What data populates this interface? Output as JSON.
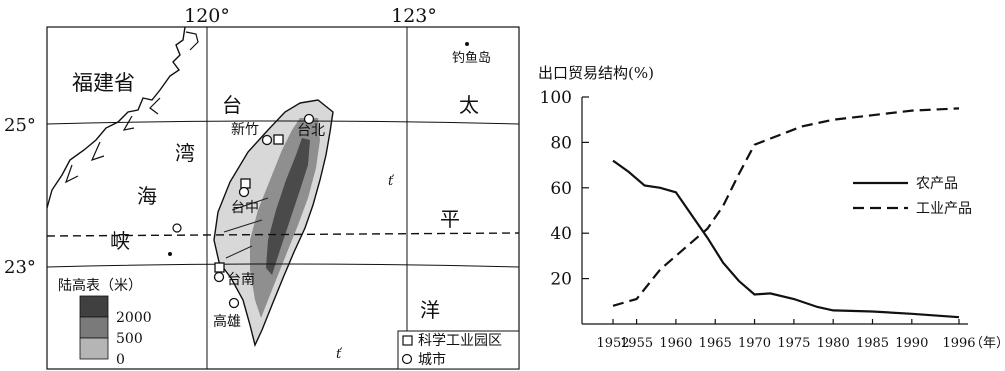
{
  "map": {
    "lon_labels": [
      "120°",
      "123°"
    ],
    "lat_labels": [
      "25°",
      "23°"
    ],
    "place_labels": {
      "fujian": "福建省",
      "tai": "台",
      "wan": "湾",
      "hai": "海",
      "xia": "峡",
      "tai2": "太",
      "ping": "平",
      "yang": "洋",
      "diaoyu": "钓鱼岛",
      "xinzhu": "新竹",
      "taibei": "台北",
      "taizhong": "台中",
      "tainan": "台南",
      "gaoxiong": "高雄"
    },
    "elevation_legend": {
      "title": "陆高表（米）",
      "levels": [
        "2000",
        "500",
        "0"
      ],
      "colors": [
        "#404040",
        "#7a7a7a",
        "#b5b5b5"
      ]
    },
    "symbol_legend": {
      "science_park": "科学工业园区",
      "city": "城市"
    }
  },
  "chart_data": {
    "type": "line",
    "title": "出口贸易结构(%)",
    "xlabel": "（年）",
    "ylabel": "出口贸易结构(%)",
    "categories": [
      "1952",
      "1955",
      "1960",
      "1965",
      "1970",
      "1975",
      "1980",
      "1985",
      "1990",
      "1996"
    ],
    "ylim": [
      0,
      100
    ],
    "yticks": [
      20,
      40,
      60,
      80,
      100
    ],
    "legend_position": "right",
    "series": [
      {
        "name": "农产品",
        "style": "solid",
        "points": [
          [
            1952,
            72
          ],
          [
            1954,
            67
          ],
          [
            1956,
            61
          ],
          [
            1958,
            60
          ],
          [
            1960,
            58
          ],
          [
            1962,
            48
          ],
          [
            1964,
            38
          ],
          [
            1966,
            27
          ],
          [
            1968,
            19
          ],
          [
            1970,
            13
          ],
          [
            1972,
            13.5
          ],
          [
            1975,
            11
          ],
          [
            1978,
            7.5
          ],
          [
            1980,
            6
          ],
          [
            1985,
            5.5
          ],
          [
            1990,
            4.5
          ],
          [
            1996,
            3
          ]
        ]
      },
      {
        "name": "工业产品",
        "style": "dashed",
        "points": [
          [
            1952,
            8
          ],
          [
            1955,
            11
          ],
          [
            1958,
            24
          ],
          [
            1960,
            30
          ],
          [
            1962,
            36
          ],
          [
            1964,
            42
          ],
          [
            1966,
            52
          ],
          [
            1968,
            66
          ],
          [
            1970,
            79
          ],
          [
            1973,
            83
          ],
          [
            1976,
            87
          ],
          [
            1980,
            90
          ],
          [
            1985,
            92
          ],
          [
            1990,
            94
          ],
          [
            1996,
            95
          ]
        ]
      }
    ]
  }
}
